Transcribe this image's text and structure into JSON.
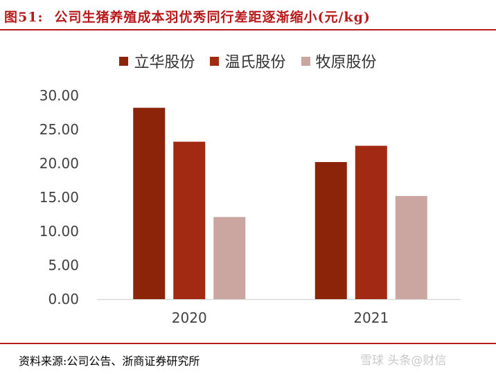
{
  "figure": {
    "number": "图51:",
    "title": "公司生猪养殖成本羽优秀同行差距逐渐缩小(元/kg)",
    "source": "资料来源:公司公告、浙商证券研究所",
    "watermark": "雪球 头条@财信"
  },
  "colors": {
    "series": [
      "#8b2408",
      "#a32a12",
      "#cba5a0"
    ],
    "accent": "#b8191b",
    "axis": "#d9d9d9"
  },
  "chart_data": {
    "type": "bar",
    "title": "",
    "xlabel": "",
    "ylabel": "",
    "categories": [
      "2020",
      "2021"
    ],
    "series": [
      {
        "name": "立华股份",
        "values": [
          28.2,
          20.2
        ]
      },
      {
        "name": "温氏股份",
        "values": [
          23.2,
          22.6
        ]
      },
      {
        "name": "牧原股份",
        "values": [
          12.1,
          15.2
        ]
      }
    ],
    "ylim": [
      0,
      30
    ],
    "yticks": [
      "0.00",
      "5.00",
      "10.00",
      "15.00",
      "20.00",
      "25.00",
      "30.00"
    ],
    "grid": false,
    "legend_position": "top"
  }
}
